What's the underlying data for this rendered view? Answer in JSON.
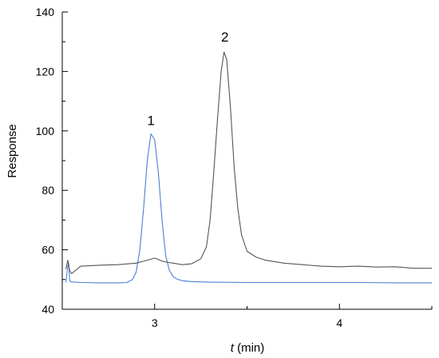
{
  "chart_data": {
    "type": "line",
    "title": "",
    "xlabel": {
      "italic": "t",
      "rest": " (min)"
    },
    "ylabel": "Response",
    "xlim": [
      2.5,
      4.5
    ],
    "ylim": [
      40,
      140
    ],
    "x_ticks": [
      3,
      4
    ],
    "x_tick_labels": [
      "3",
      "4"
    ],
    "x_minor_ticks": [
      2.5,
      3.5,
      4.5
    ],
    "y_ticks": [
      40,
      60,
      80,
      100,
      120,
      140
    ],
    "y_tick_labels": [
      "40",
      "60",
      "80",
      "100",
      "120",
      "140"
    ],
    "y_minor_ticks": [
      50,
      70,
      90,
      110,
      130
    ],
    "grid": false,
    "legend": "none",
    "peak_labels": [
      {
        "text": "1",
        "x": 2.98,
        "y": 102
      },
      {
        "text": "2",
        "x": 3.38,
        "y": 130
      }
    ],
    "series": [
      {
        "color": "#4a7fd4",
        "points": [
          [
            2.52,
            49.0
          ],
          [
            2.53,
            54.5
          ],
          [
            2.535,
            55.5
          ],
          [
            2.54,
            49.5
          ],
          [
            2.55,
            49.2
          ],
          [
            2.6,
            49.0
          ],
          [
            2.7,
            48.9
          ],
          [
            2.8,
            48.9
          ],
          [
            2.85,
            49.0
          ],
          [
            2.88,
            50.0
          ],
          [
            2.9,
            52.5
          ],
          [
            2.92,
            60.0
          ],
          [
            2.94,
            74.0
          ],
          [
            2.96,
            90.0
          ],
          [
            2.98,
            99.0
          ],
          [
            3.0,
            97.0
          ],
          [
            3.02,
            86.0
          ],
          [
            3.04,
            70.0
          ],
          [
            3.06,
            58.0
          ],
          [
            3.08,
            53.0
          ],
          [
            3.1,
            51.0
          ],
          [
            3.12,
            50.2
          ],
          [
            3.15,
            49.6
          ],
          [
            3.2,
            49.3
          ],
          [
            3.3,
            49.1
          ],
          [
            3.5,
            49.0
          ],
          [
            3.7,
            49.0
          ],
          [
            3.9,
            49.0
          ],
          [
            4.1,
            49.0
          ],
          [
            4.3,
            48.9
          ],
          [
            4.5,
            48.9
          ]
        ]
      },
      {
        "color": "#555555",
        "points": [
          [
            2.52,
            53.5
          ],
          [
            2.53,
            56.5
          ],
          [
            2.54,
            53.0
          ],
          [
            2.55,
            52.0
          ],
          [
            2.6,
            54.5
          ],
          [
            2.7,
            54.8
          ],
          [
            2.8,
            55.0
          ],
          [
            2.9,
            55.5
          ],
          [
            2.96,
            56.5
          ],
          [
            3.0,
            57.2
          ],
          [
            3.05,
            56.0
          ],
          [
            3.1,
            55.5
          ],
          [
            3.15,
            55.0
          ],
          [
            3.2,
            55.3
          ],
          [
            3.25,
            57.0
          ],
          [
            3.28,
            61.0
          ],
          [
            3.3,
            70.0
          ],
          [
            3.32,
            86.0
          ],
          [
            3.34,
            104.0
          ],
          [
            3.36,
            120.0
          ],
          [
            3.375,
            126.5
          ],
          [
            3.39,
            124.0
          ],
          [
            3.41,
            108.0
          ],
          [
            3.43,
            88.0
          ],
          [
            3.45,
            74.0
          ],
          [
            3.47,
            65.0
          ],
          [
            3.5,
            59.5
          ],
          [
            3.55,
            57.5
          ],
          [
            3.6,
            56.5
          ],
          [
            3.7,
            55.5
          ],
          [
            3.8,
            55.0
          ],
          [
            3.9,
            54.5
          ],
          [
            4.0,
            54.3
          ],
          [
            4.1,
            54.5
          ],
          [
            4.2,
            54.2
          ],
          [
            4.3,
            54.3
          ],
          [
            4.4,
            53.8
          ],
          [
            4.5,
            53.8
          ]
        ]
      }
    ]
  }
}
